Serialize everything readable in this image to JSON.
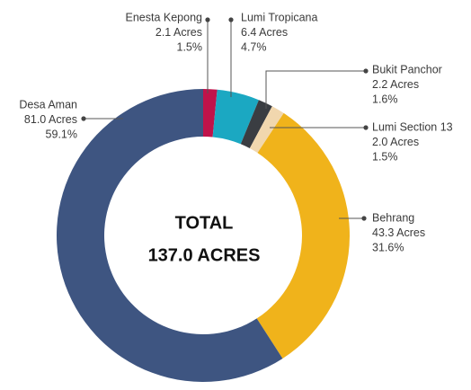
{
  "chart_data": {
    "type": "donut",
    "categories": [
      "Enesta Kepong",
      "Lumi Tropicana",
      "Bukit Panchor",
      "Lumi Section 13",
      "Behrang",
      "Desa Aman"
    ],
    "values": [
      2.1,
      6.4,
      2.2,
      2.0,
      43.3,
      81.0
    ],
    "value_labels": [
      "2.1 Acres",
      "6.4 Acres",
      "2.2 Acres",
      "2.0 Acres",
      "43.3 Acres",
      "81.0 Acres"
    ],
    "percents": [
      1.5,
      4.7,
      1.6,
      1.5,
      31.6,
      59.1
    ],
    "percent_labels": [
      "1.5%",
      "4.7%",
      "1.6%",
      "1.5%",
      "31.6%",
      "59.1%"
    ],
    "colors": [
      "#c0134a",
      "#1ba8c2",
      "#3a3d42",
      "#f1d7ae",
      "#f0b31b",
      "#3e5581"
    ],
    "total_title": "TOTAL",
    "total_label": "137.0 ACRES"
  }
}
